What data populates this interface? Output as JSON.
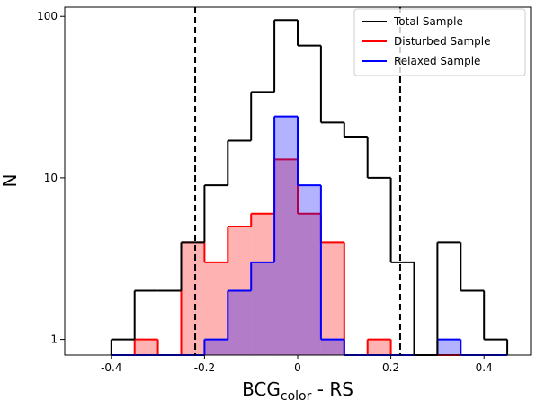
{
  "chart_data": {
    "type": "histogram",
    "x_label": {
      "main": "BCG",
      "sub": "color",
      "rest": " - RS"
    },
    "y_label": "N",
    "bins": [
      -0.4,
      -0.35,
      -0.3,
      -0.25,
      -0.2,
      -0.15,
      -0.1,
      -0.05,
      0,
      0.05,
      0.1,
      0.15,
      0.2,
      0.25,
      0.3,
      0.35,
      0.4,
      0.45
    ],
    "series": [
      {
        "name": "Total Sample",
        "color": "#000000",
        "filled": false,
        "values": [
          1,
          2,
          2,
          4,
          9,
          17,
          34,
          95,
          66,
          22,
          18,
          10,
          3,
          0,
          4,
          2,
          1
        ]
      },
      {
        "name": "Disturbed Sample",
        "color": "#ff0000",
        "filled": true,
        "values": [
          0,
          1,
          0,
          4,
          3,
          5,
          6,
          13,
          6,
          4,
          0,
          1,
          0,
          0,
          0,
          0,
          0
        ]
      },
      {
        "name": "Relaxed Sample",
        "color": "#0000ff",
        "filled": true,
        "values": [
          0,
          0,
          0,
          0,
          1,
          2,
          3,
          24,
          9,
          1,
          0,
          0,
          0,
          0,
          1,
          0,
          0
        ]
      }
    ],
    "vlines": [
      -0.22,
      0.22
    ],
    "xlim": [
      -0.5,
      0.5
    ],
    "xticks": [
      -0.4,
      -0.2,
      0,
      0.2,
      0.4
    ],
    "ylim": [
      0.8,
      114
    ],
    "yticks": [
      1,
      10,
      100
    ],
    "log_y": true,
    "legend": "upper-right"
  }
}
